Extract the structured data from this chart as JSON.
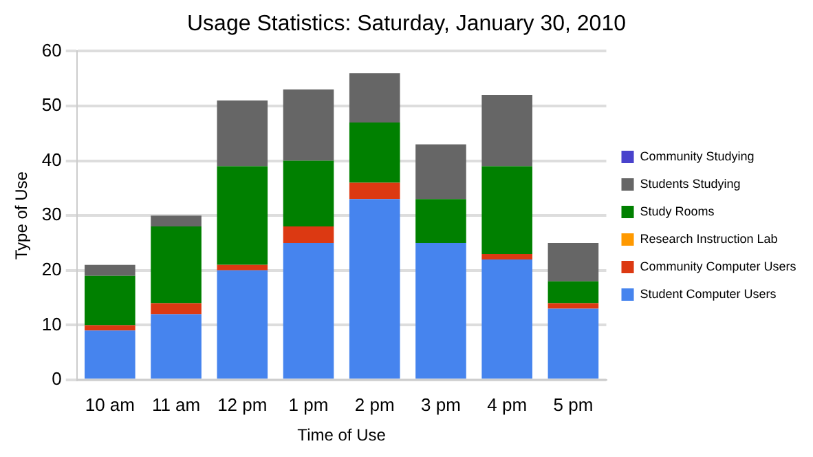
{
  "chart_data": {
    "type": "bar",
    "title": "Usage Statistics: Saturday, January 30, 2010",
    "xlabel": "Time of Use",
    "ylabel": "Type of Use",
    "categories": [
      "10 am",
      "11 am",
      "12 pm",
      "1 pm",
      "2 pm",
      "3 pm",
      "4 pm",
      "5 pm"
    ],
    "stacked": true,
    "series": [
      {
        "name": "Student Computer Users",
        "color": "#4684ee",
        "values": [
          9,
          12,
          20,
          25,
          33,
          25,
          22,
          13
        ]
      },
      {
        "name": "Community Computer Users",
        "color": "#dc3912",
        "values": [
          1,
          2,
          1,
          3,
          3,
          0,
          1,
          1
        ]
      },
      {
        "name": "Research Instruction Lab",
        "color": "#ff9900",
        "values": [
          0,
          0,
          0,
          0,
          0,
          0,
          0,
          0
        ]
      },
      {
        "name": "Study Rooms",
        "color": "#008000",
        "values": [
          9,
          14,
          18,
          12,
          11,
          8,
          16,
          4
        ]
      },
      {
        "name": "Students Studying",
        "color": "#666666",
        "values": [
          2,
          2,
          12,
          13,
          9,
          10,
          13,
          7
        ]
      },
      {
        "name": "Community Studying",
        "color": "#4942cc",
        "values": [
          0,
          0,
          0,
          0,
          0,
          0,
          0,
          0
        ]
      }
    ],
    "ylim": [
      0,
      60
    ],
    "yticks": [
      0,
      10,
      20,
      30,
      40,
      50,
      60
    ],
    "grid": "y",
    "legend": "right"
  }
}
